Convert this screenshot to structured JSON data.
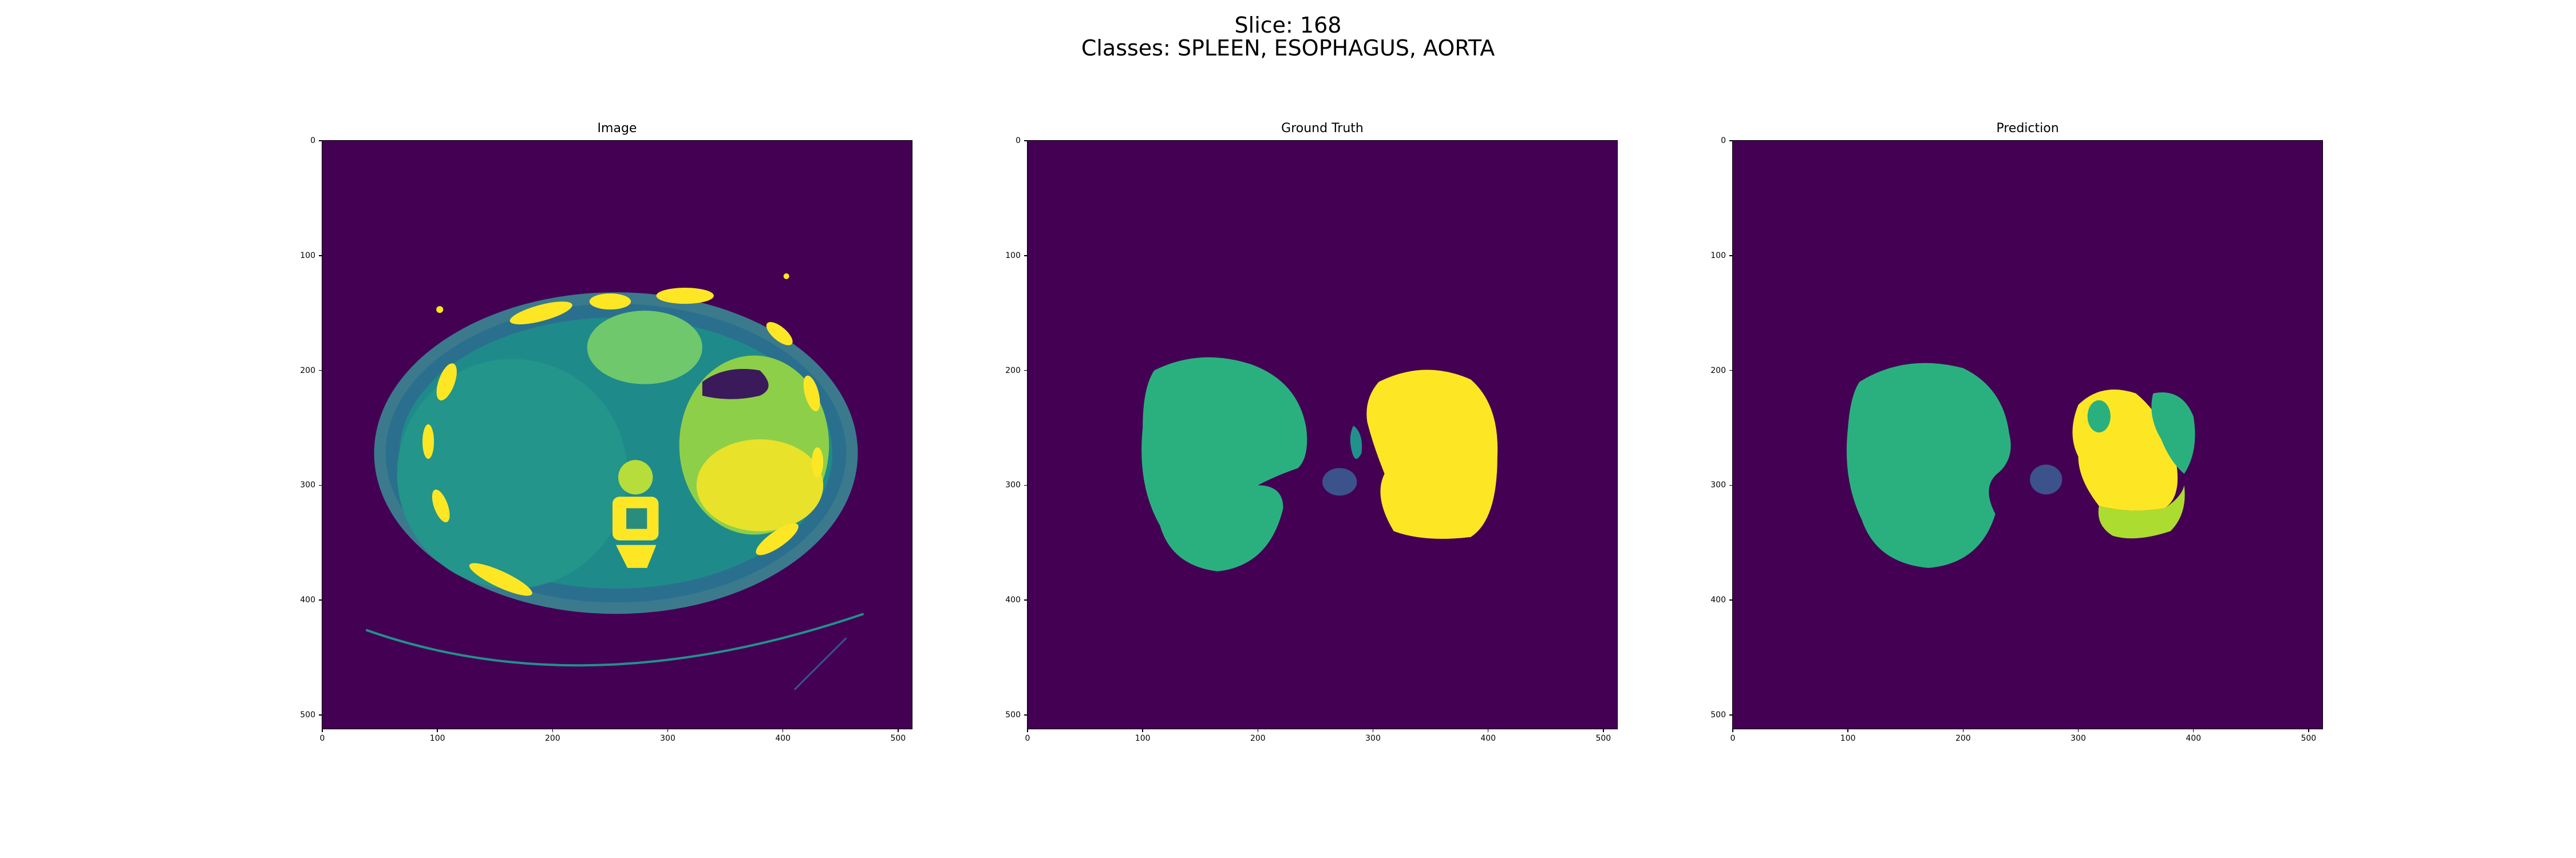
{
  "figure": {
    "suptitle_line1": "Slice: 168",
    "suptitle_line2": "Classes: SPLEEN, ESOPHAGUS, AORTA"
  },
  "panels": [
    {
      "title": "Image"
    },
    {
      "title": "Ground Truth"
    },
    {
      "title": "Prediction"
    }
  ],
  "axes": {
    "yticks": [
      "0",
      "100",
      "200",
      "300",
      "400",
      "500"
    ],
    "xticks": [
      "0",
      "100",
      "200",
      "300",
      "400",
      "500"
    ]
  },
  "colors": {
    "background": "#440154",
    "class_dark": "#3b528b",
    "class_teal": "#21918c",
    "class_green": "#2ab07f",
    "class_lime": "#addc30",
    "class_yellow": "#fde725"
  }
}
